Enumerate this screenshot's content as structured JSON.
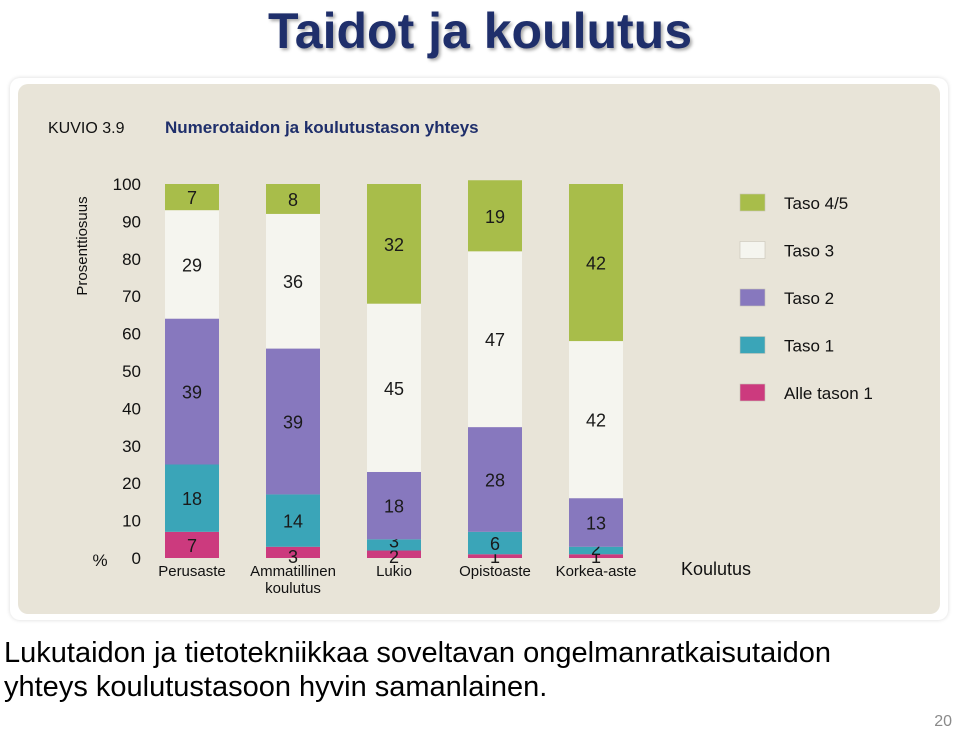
{
  "slide": {
    "title": "Taidot ja koulutus",
    "caption_line1": "Lukutaidon ja tietotekniikkaa soveltavan ongelmanratkaisutaidon",
    "caption_line2": "yhteys koulutustasoon hyvin samanlainen.",
    "page_number": "20"
  },
  "colors": {
    "panel_bg": "#e8e4d8",
    "title_blue": "#1f2f6b"
  },
  "chart_data": {
    "type": "bar",
    "stacked": true,
    "figure_label": "KUVIO 3.9",
    "title": "Numerotaidon ja koulutustason yhteys",
    "ylabel": "Prosenttiosuus",
    "y_unit_label": "%",
    "xlabel": "Koulutus",
    "ylim": [
      0,
      100
    ],
    "yticks": [
      0,
      10,
      20,
      30,
      40,
      50,
      60,
      70,
      80,
      90,
      100
    ],
    "categories": [
      [
        "Perusaste"
      ],
      [
        "Ammatillinen",
        "koulutus"
      ],
      [
        "Lukio"
      ],
      [
        "Opistoaste"
      ],
      [
        "Korkea-aste"
      ]
    ],
    "series": [
      {
        "name": "Alle tason 1",
        "color": "#cc3a7e",
        "values": [
          7,
          3,
          2,
          1,
          1
        ]
      },
      {
        "name": "Taso 1",
        "color": "#3aa5b8",
        "values": [
          18,
          14,
          3,
          6,
          2
        ]
      },
      {
        "name": "Taso 2",
        "color": "#8778be",
        "values": [
          39,
          39,
          18,
          28,
          13
        ]
      },
      {
        "name": "Taso 3",
        "color": "#f5f5ef",
        "values": [
          29,
          36,
          45,
          47,
          42
        ]
      },
      {
        "name": "Taso 4/5",
        "color": "#a8bd4a",
        "values": [
          7,
          8,
          32,
          19,
          42
        ]
      }
    ],
    "legend_order": [
      "Taso 4/5",
      "Taso 3",
      "Taso 2",
      "Taso 1",
      "Alle tason 1"
    ],
    "legend_position": "right",
    "grid": false
  }
}
